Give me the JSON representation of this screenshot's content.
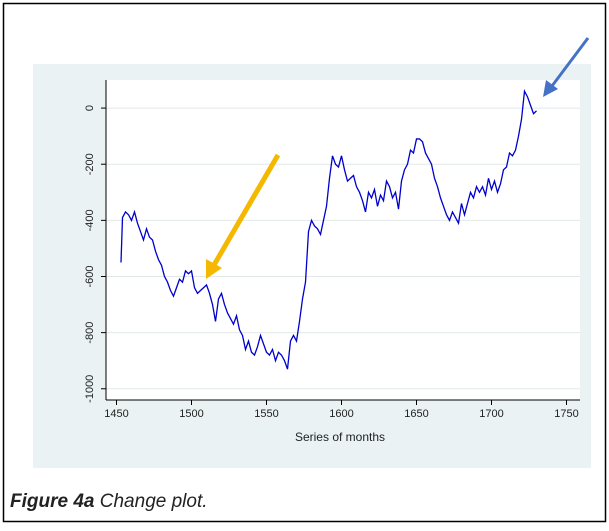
{
  "chart_data": {
    "type": "line",
    "caption_label": "Figure 4a",
    "caption_text": "Change plot.",
    "x_label": "Series of months",
    "x": [
      1453,
      1454,
      1456,
      1458,
      1460,
      1462,
      1464,
      1466,
      1468,
      1470,
      1472,
      1474,
      1476,
      1478,
      1480,
      1482,
      1484,
      1486,
      1488,
      1490,
      1492,
      1494,
      1496,
      1498,
      1500,
      1502,
      1504,
      1506,
      1508,
      1510,
      1512,
      1514,
      1516,
      1518,
      1520,
      1522,
      1524,
      1526,
      1528,
      1530,
      1532,
      1534,
      1536,
      1538,
      1540,
      1542,
      1544,
      1546,
      1548,
      1550,
      1552,
      1554,
      1556,
      1558,
      1560,
      1562,
      1564,
      1566,
      1568,
      1570,
      1572,
      1574,
      1576,
      1578,
      1580,
      1582,
      1584,
      1586,
      1588,
      1590,
      1592,
      1594,
      1596,
      1598,
      1600,
      1602,
      1604,
      1606,
      1608,
      1610,
      1612,
      1614,
      1616,
      1618,
      1620,
      1622,
      1624,
      1626,
      1628,
      1630,
      1632,
      1634,
      1636,
      1638,
      1640,
      1642,
      1644,
      1646,
      1648,
      1650,
      1652,
      1654,
      1656,
      1658,
      1660,
      1662,
      1664,
      1666,
      1668,
      1670,
      1672,
      1674,
      1676,
      1678,
      1680,
      1682,
      1684,
      1686,
      1688,
      1690,
      1692,
      1694,
      1696,
      1698,
      1700,
      1702,
      1704,
      1706,
      1708,
      1710,
      1712,
      1714,
      1716,
      1718,
      1720,
      1722,
      1724,
      1726,
      1728,
      1730
    ],
    "series": [
      {
        "color": "#0000cc",
        "values": [
          -550,
          -390,
          -370,
          -380,
          -400,
          -370,
          -410,
          -440,
          -470,
          -430,
          -460,
          -470,
          -510,
          -540,
          -560,
          -600,
          -620,
          -650,
          -670,
          -640,
          -610,
          -620,
          -580,
          -590,
          -580,
          -640,
          -660,
          -650,
          -640,
          -630,
          -660,
          -700,
          -760,
          -680,
          -660,
          -700,
          -730,
          -750,
          -770,
          -740,
          -790,
          -810,
          -860,
          -830,
          -870,
          -880,
          -850,
          -810,
          -840,
          -870,
          -880,
          -860,
          -900,
          -870,
          -880,
          -900,
          -930,
          -830,
          -810,
          -830,
          -760,
          -680,
          -620,
          -440,
          -400,
          -420,
          -430,
          -450,
          -400,
          -350,
          -250,
          -170,
          -200,
          -210,
          -170,
          -220,
          -260,
          -250,
          -240,
          -280,
          -300,
          -330,
          -370,
          -300,
          -320,
          -290,
          -350,
          -310,
          -330,
          -260,
          -280,
          -320,
          -300,
          -360,
          -260,
          -220,
          -200,
          -150,
          -160,
          -110,
          -110,
          -120,
          -160,
          -180,
          -200,
          -250,
          -280,
          -320,
          -350,
          -380,
          -400,
          -370,
          -390,
          -410,
          -340,
          -380,
          -340,
          -300,
          -320,
          -280,
          -300,
          -280,
          -310,
          -250,
          -290,
          -260,
          -300,
          -270,
          -220,
          -210,
          -160,
          -170,
          -150,
          -100,
          -40,
          60,
          40,
          10,
          -20,
          -10
        ]
      }
    ],
    "xlim": [
      1443,
      1759
    ],
    "xticks": [
      1450,
      1500,
      1550,
      1600,
      1650,
      1700,
      1750
    ],
    "ylim": [
      -1040,
      100
    ],
    "yticks": [
      -1000,
      -800,
      -600,
      -400,
      -200,
      0
    ],
    "grid": true
  }
}
